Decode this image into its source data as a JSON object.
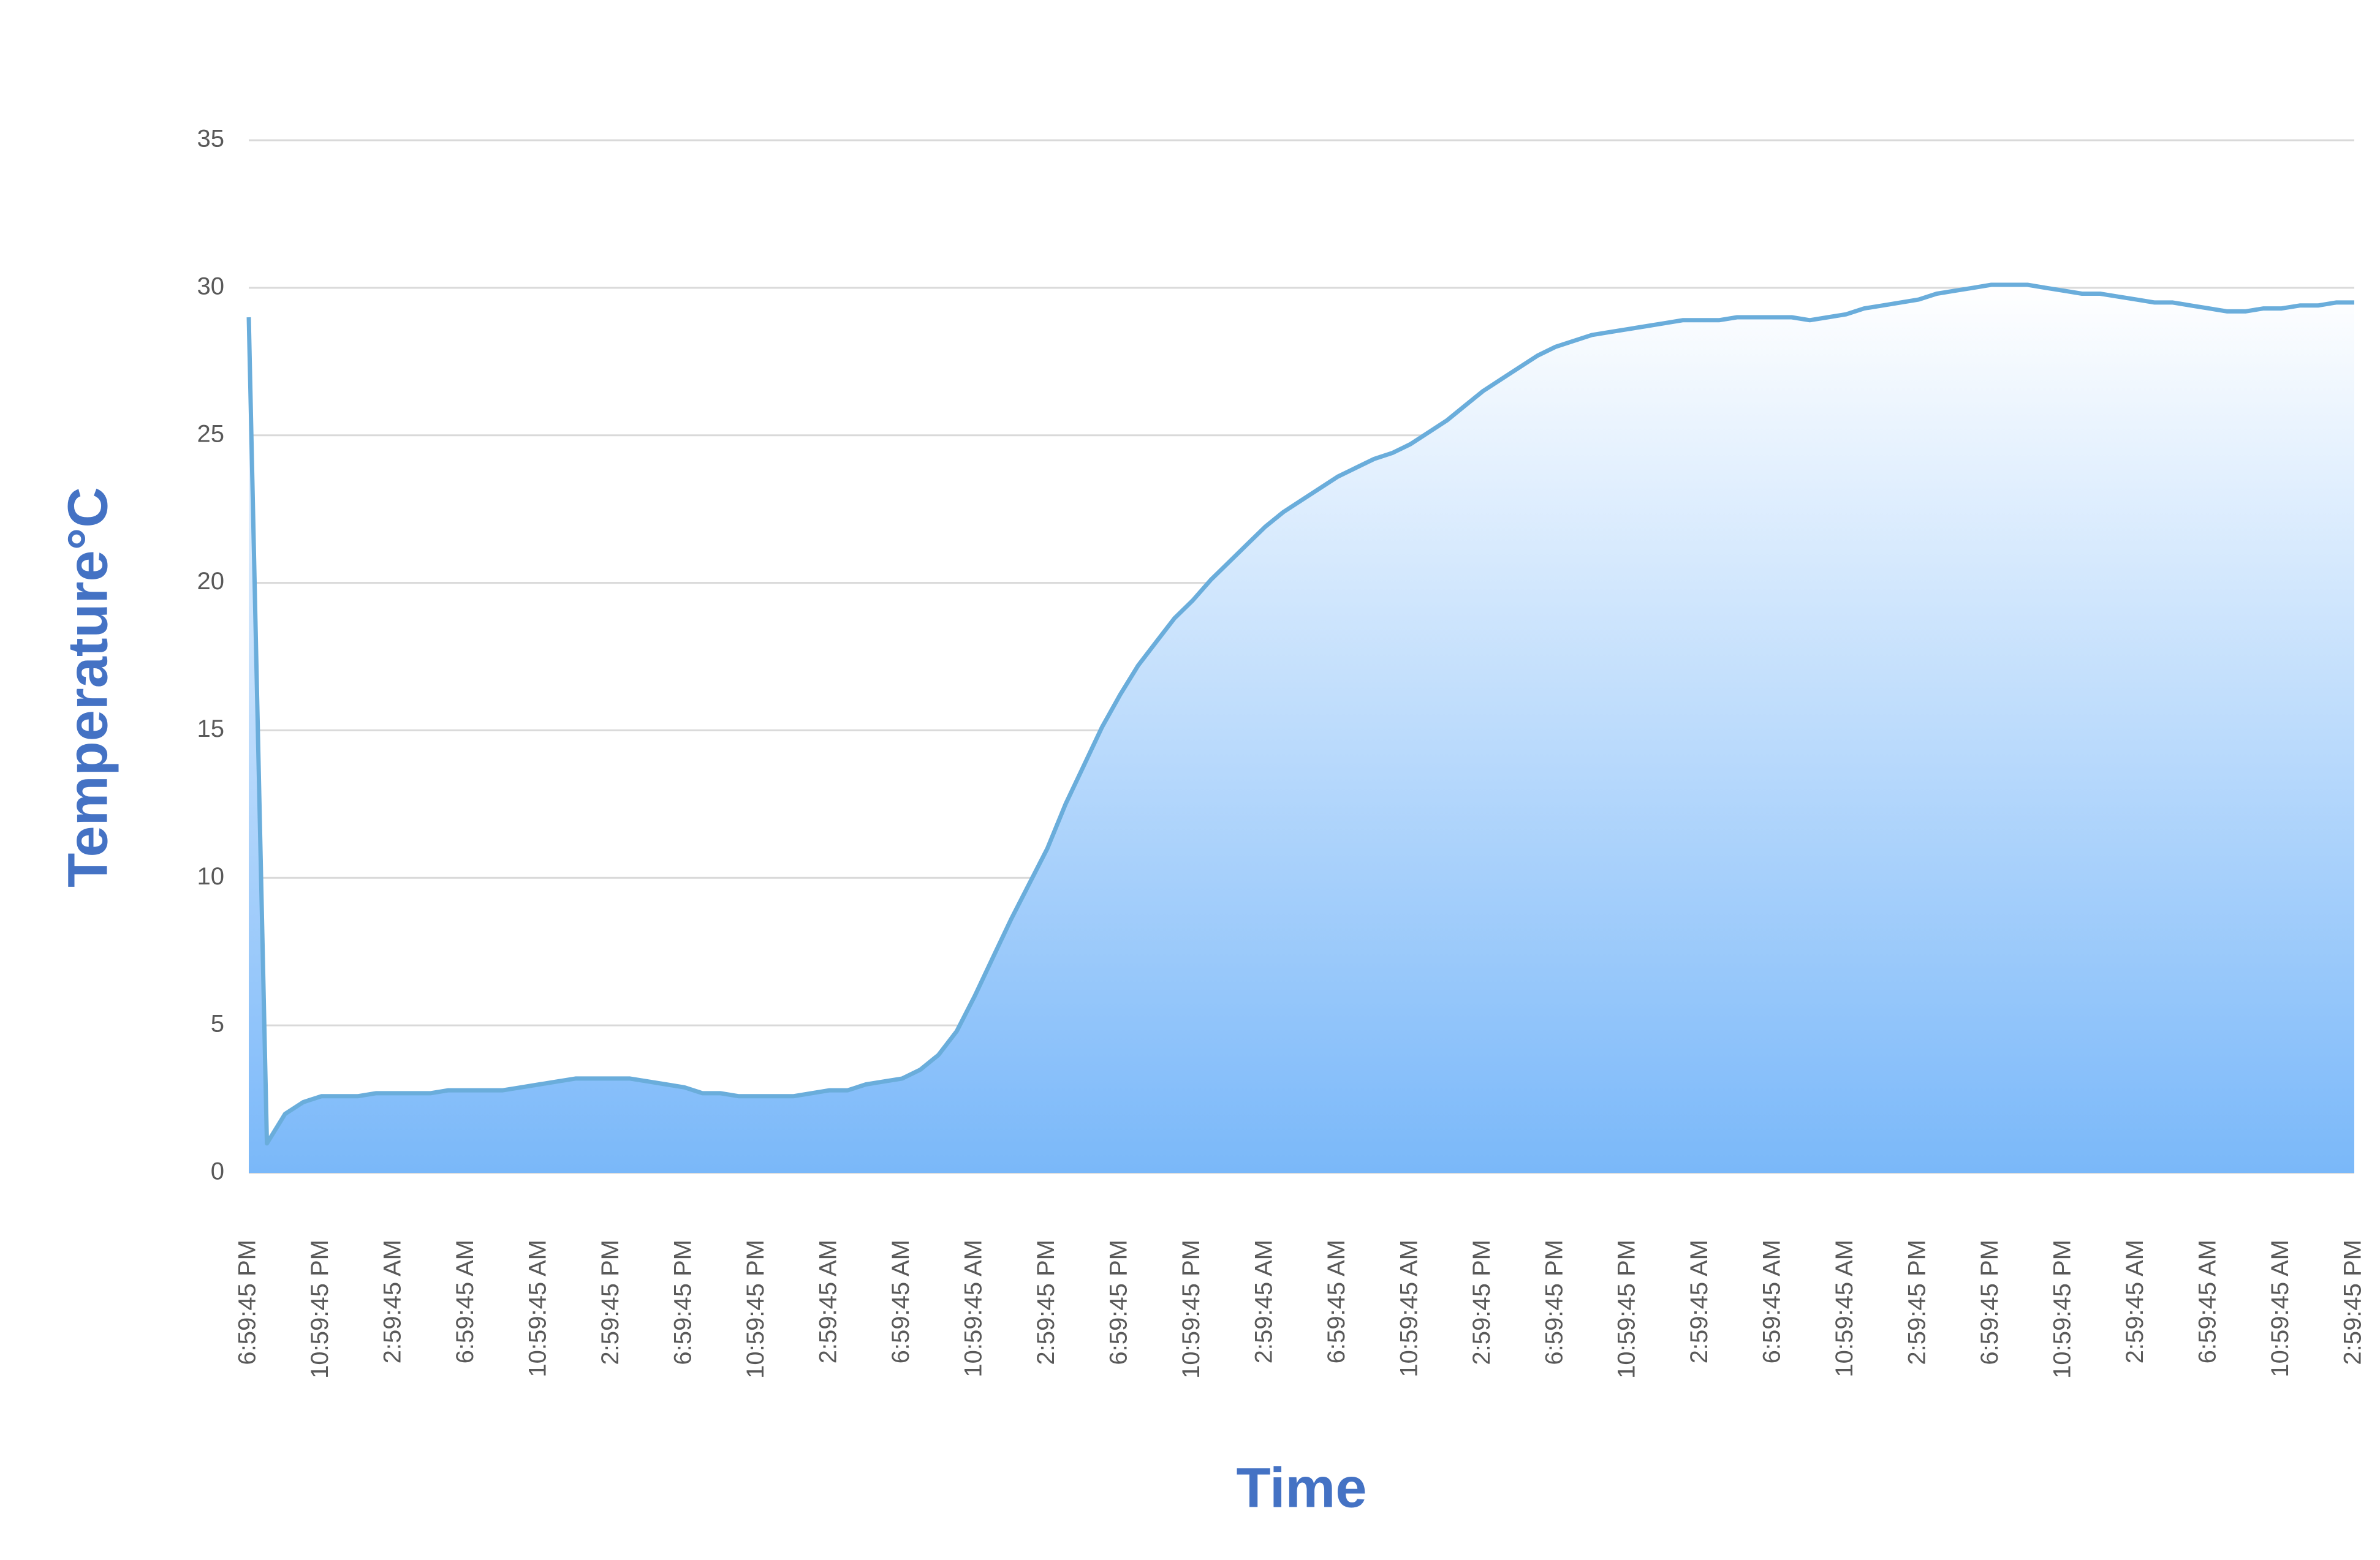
{
  "chart_data": {
    "type": "area",
    "x_label": "Time",
    "y_label": "Temperature°C",
    "categories": [
      "6:59:45 PM",
      null,
      null,
      null,
      "10:59:45 PM",
      null,
      null,
      null,
      "2:59:45 AM",
      null,
      null,
      null,
      "6:59:45 AM",
      null,
      null,
      null,
      "10:59:45 AM",
      null,
      null,
      null,
      "2:59:45 PM",
      null,
      null,
      null,
      "6:59:45 PM",
      null,
      null,
      null,
      "10:59:45 PM",
      null,
      null,
      null,
      "2:59:45 AM",
      null,
      null,
      null,
      "6:59:45 AM",
      null,
      null,
      null,
      "10:59:45 AM",
      null,
      null,
      null,
      "2:59:45 PM",
      null,
      null,
      null,
      "6:59:45 PM",
      null,
      null,
      null,
      "10:59:45 PM",
      null,
      null,
      null,
      "2:59:45 AM",
      null,
      null,
      null,
      "6:59:45 AM",
      null,
      null,
      null,
      "10:59:45 AM",
      null,
      null,
      null,
      "2:59:45 PM",
      null,
      null,
      null,
      "6:59:45 PM",
      null,
      null,
      null,
      "10:59:45 PM",
      null,
      null,
      null,
      "2:59:45 AM",
      null,
      null,
      null,
      "6:59:45 AM",
      null,
      null,
      null,
      "10:59:45 AM",
      null,
      null,
      null,
      "2:59:45 PM",
      null,
      null,
      null,
      "6:59:45 PM",
      null,
      null,
      null,
      "10:59:45 PM",
      null,
      null,
      null,
      "2:59:45 AM",
      null,
      null,
      null,
      "6:59:45 AM",
      null,
      null,
      null,
      "10:59:45 AM",
      null,
      null,
      null,
      "2:59:45 PM"
    ],
    "values": [
      29,
      1.0,
      2.0,
      2.4,
      2.6,
      2.6,
      2.6,
      2.7,
      2.7,
      2.7,
      2.7,
      2.8,
      2.8,
      2.8,
      2.8,
      2.9,
      3.0,
      3.1,
      3.2,
      3.2,
      3.2,
      3.2,
      3.1,
      3.0,
      2.9,
      2.7,
      2.7,
      2.6,
      2.6,
      2.6,
      2.6,
      2.7,
      2.8,
      2.8,
      3.0,
      3.1,
      3.2,
      3.5,
      4.0,
      4.8,
      6.0,
      7.3,
      8.6,
      9.8,
      11.0,
      12.5,
      13.8,
      15.1,
      16.2,
      17.2,
      18.0,
      18.8,
      19.4,
      20.1,
      20.7,
      21.3,
      21.9,
      22.4,
      22.8,
      23.2,
      23.6,
      23.9,
      24.2,
      24.4,
      24.7,
      25.1,
      25.5,
      26.0,
      26.5,
      26.9,
      27.3,
      27.7,
      28.0,
      28.2,
      28.4,
      28.5,
      28.6,
      28.7,
      28.8,
      28.9,
      28.9,
      28.9,
      29.0,
      29.0,
      29.0,
      29.0,
      28.9,
      29.0,
      29.1,
      29.3,
      29.4,
      29.5,
      29.6,
      29.8,
      29.9,
      30.0,
      30.1,
      30.1,
      30.1,
      30.0,
      29.9,
      29.8,
      29.8,
      29.7,
      29.6,
      29.5,
      29.5,
      29.4,
      29.3,
      29.2,
      29.2,
      29.3,
      29.3,
      29.4,
      29.4,
      29.5,
      29.5
    ],
    "color": "#6aaddb",
    "fill_colors": [
      "#7ab8f9",
      "#ffffff"
    ],
    "ylim": [
      0,
      35
    ],
    "yticks": [
      0,
      5,
      10,
      15,
      20,
      25,
      30,
      35
    ],
    "grid": true
  }
}
